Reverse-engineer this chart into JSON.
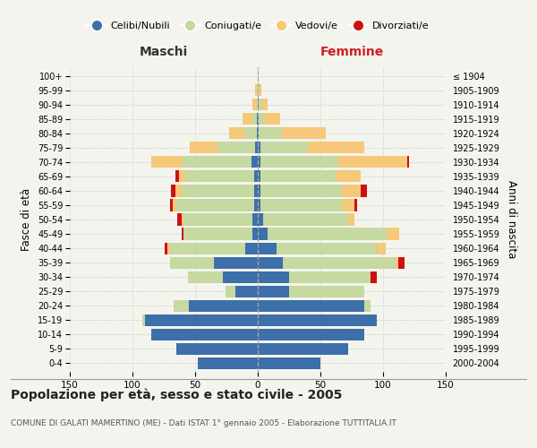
{
  "age_groups": [
    "0-4",
    "5-9",
    "10-14",
    "15-19",
    "20-24",
    "25-29",
    "30-34",
    "35-39",
    "40-44",
    "45-49",
    "50-54",
    "55-59",
    "60-64",
    "65-69",
    "70-74",
    "75-79",
    "80-84",
    "85-89",
    "90-94",
    "95-99",
    "100+"
  ],
  "birth_years": [
    "2000-2004",
    "1995-1999",
    "1990-1994",
    "1985-1989",
    "1980-1984",
    "1975-1979",
    "1970-1974",
    "1965-1969",
    "1960-1964",
    "1955-1959",
    "1950-1954",
    "1945-1949",
    "1940-1944",
    "1935-1939",
    "1930-1934",
    "1925-1929",
    "1920-1924",
    "1915-1919",
    "1910-1914",
    "1905-1909",
    "≤ 1904"
  ],
  "colors": {
    "celibi": "#3d6faa",
    "coniugati": "#c5d9a0",
    "vedovi": "#f5c87a",
    "divorziati": "#cc1111"
  },
  "maschi": {
    "celibi": [
      48,
      65,
      85,
      90,
      55,
      18,
      28,
      35,
      10,
      4,
      4,
      3,
      3,
      3,
      5,
      2,
      1,
      1,
      0,
      0,
      0
    ],
    "coniugati": [
      0,
      0,
      0,
      2,
      12,
      8,
      28,
      35,
      60,
      55,
      55,
      62,
      58,
      55,
      55,
      30,
      10,
      3,
      1,
      1,
      0
    ],
    "vedovi": [
      0,
      0,
      0,
      0,
      0,
      0,
      0,
      0,
      2,
      0,
      2,
      3,
      5,
      5,
      25,
      22,
      12,
      8,
      3,
      1,
      0
    ],
    "divorziati": [
      0,
      0,
      0,
      0,
      0,
      0,
      0,
      0,
      2,
      2,
      3,
      2,
      3,
      3,
      0,
      0,
      0,
      0,
      0,
      0,
      0
    ]
  },
  "femmine": {
    "celibi": [
      50,
      72,
      85,
      95,
      85,
      25,
      25,
      20,
      15,
      8,
      4,
      2,
      2,
      2,
      2,
      2,
      1,
      1,
      1,
      0,
      0
    ],
    "coniugati": [
      0,
      0,
      0,
      0,
      5,
      60,
      65,
      90,
      80,
      95,
      68,
      65,
      65,
      60,
      62,
      38,
      18,
      5,
      2,
      1,
      0
    ],
    "vedovi": [
      0,
      0,
      0,
      0,
      0,
      0,
      0,
      2,
      7,
      10,
      5,
      10,
      15,
      20,
      55,
      45,
      35,
      12,
      5,
      2,
      1
    ],
    "divorziati": [
      0,
      0,
      0,
      0,
      0,
      0,
      5,
      5,
      0,
      0,
      0,
      2,
      5,
      0,
      2,
      0,
      0,
      0,
      0,
      0,
      0
    ]
  },
  "xlim": 150,
  "title": "Popolazione per età, sesso e stato civile - 2005",
  "subtitle": "COMUNE DI GALATI MAMERTINO (ME) - Dati ISTAT 1° gennaio 2005 - Elaborazione TUTTITALIA.IT",
  "ylabel_left": "Fasce di età",
  "ylabel_right": "Anni di nascita",
  "header_maschi": "Maschi",
  "header_femmine": "Femmine",
  "legend_labels": [
    "Celibi/Nubili",
    "Coniugati/e",
    "Vedovi/e",
    "Divorziati/e"
  ],
  "bg_color": "#f4f4ee",
  "grid_color": "#cccccc",
  "title_fontsize": 10,
  "subtitle_fontsize": 6.5
}
